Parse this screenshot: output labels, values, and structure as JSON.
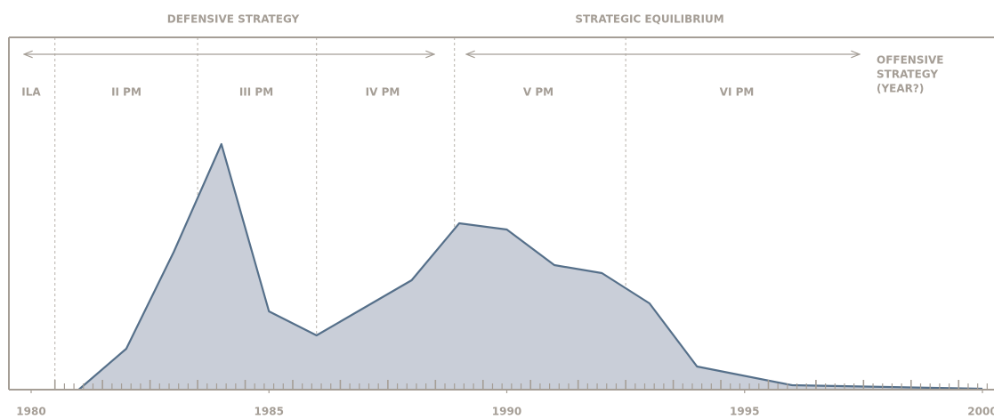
{
  "chart_data": {
    "type": "area",
    "x": [
      1981,
      1982,
      1983,
      1984,
      1985,
      1986,
      1988,
      1989,
      1990,
      1991,
      1992,
      1993,
      1994,
      1996,
      2000
    ],
    "values": [
      0,
      46,
      155,
      276,
      88,
      61,
      123,
      187,
      180,
      140,
      131,
      97,
      26,
      5,
      1
    ],
    "color": "#56708a",
    "fill": "#c9ced8",
    "xlim": [
      1980,
      2000
    ],
    "xticks": [
      1980,
      1985,
      1990,
      1995,
      2000
    ],
    "ylim": [
      0,
      396
    ],
    "phase_boundaries": [
      1980.5,
      1983.5,
      1986,
      1988.9,
      1992.5
    ],
    "strategies": [
      "DEFENSIVE STRATEGY",
      "STRATEGIC EQUILIBRIUM"
    ],
    "phases": [
      "ILA",
      "II PM",
      "III PM",
      "IV PM",
      "V PM",
      "VI PM"
    ],
    "offensive_label": [
      "OFFENSIVE",
      "STRATEGY",
      "(YEAR?)"
    ]
  }
}
